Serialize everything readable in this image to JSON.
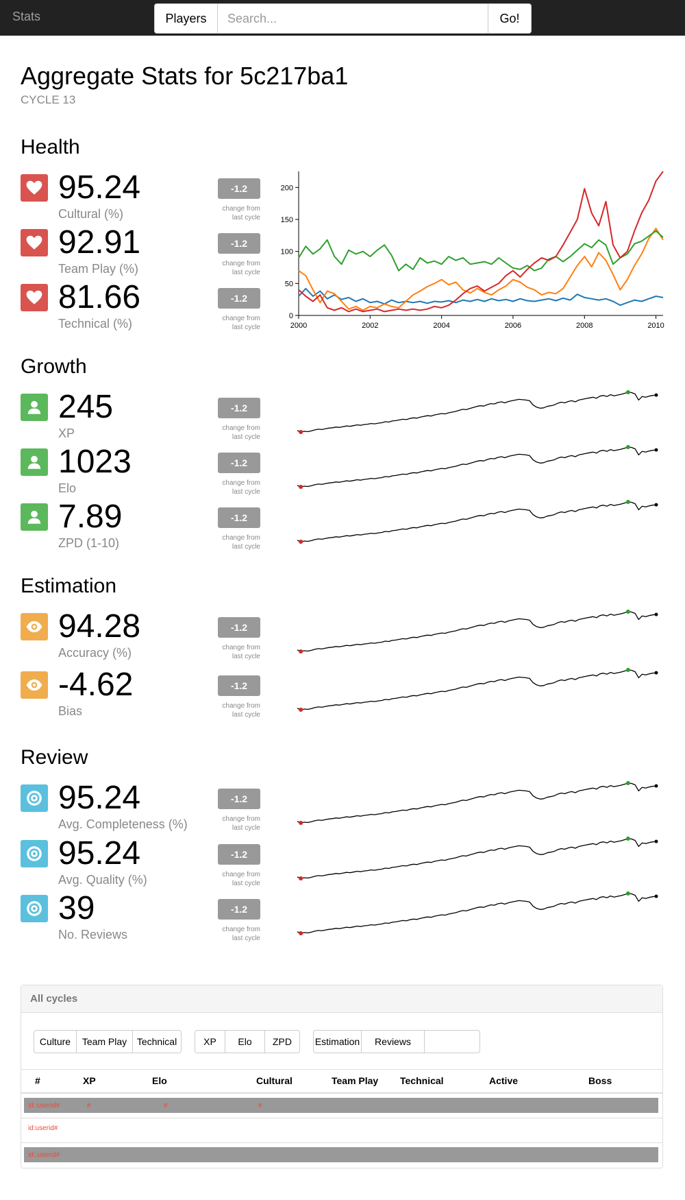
{
  "navbar": {
    "brand": "Stats",
    "players_label": "Players",
    "search_placeholder": "Search...",
    "go_label": "Go!"
  },
  "header": {
    "title": "Aggregate Stats for 5c217ba1",
    "subtitle": "CYCLE 13"
  },
  "change_note_line1": "change from",
  "change_note_line2": "last cycle",
  "sections": {
    "health": {
      "title": "Health",
      "icon": "heart-icon",
      "metrics": [
        {
          "value": "95.24",
          "label": "Cultural (%)",
          "delta": "-1.2"
        },
        {
          "value": "92.91",
          "label": "Team Play (%)",
          "delta": "-1.2"
        },
        {
          "value": "81.66",
          "label": "Technical (%)",
          "delta": "-1.2"
        }
      ]
    },
    "growth": {
      "title": "Growth",
      "icon": "user-icon",
      "metrics": [
        {
          "value": "245",
          "label": "XP",
          "delta": "-1.2"
        },
        {
          "value": "1023",
          "label": "Elo",
          "delta": "-1.2"
        },
        {
          "value": "7.89",
          "label": "ZPD (1-10)",
          "delta": "-1.2"
        }
      ]
    },
    "estimation": {
      "title": "Estimation",
      "icon": "eye-icon",
      "metrics": [
        {
          "value": "94.28",
          "label": "Accuracy (%)",
          "delta": "-1.2"
        },
        {
          "value": "-4.62",
          "label": "Bias",
          "delta": "-1.2"
        }
      ]
    },
    "review": {
      "title": "Review",
      "icon": "target-icon",
      "metrics": [
        {
          "value": "95.24",
          "label": "Avg. Completeness (%)",
          "delta": "-1.2"
        },
        {
          "value": "95.24",
          "label": "Avg. Quality (%)",
          "delta": "-1.2"
        },
        {
          "value": "39",
          "label": "No. Reviews",
          "delta": "-1.2"
        }
      ]
    }
  },
  "colors": {
    "health": "#d9534f",
    "growth": "#5cb85c",
    "estimation": "#f0ad4e",
    "review": "#5bc0de",
    "badge": "#999999"
  },
  "chart_data": {
    "type": "line",
    "xlim": [
      2000,
      2010.2
    ],
    "ylim": [
      0,
      225
    ],
    "x_ticks": [
      "2000",
      "2002",
      "2004",
      "2006",
      "2008",
      "2010"
    ],
    "y_ticks": [
      "0",
      "50",
      "100",
      "150",
      "200"
    ],
    "series": [
      {
        "color": "#1f77b4",
        "points": [
          [
            2000,
            30
          ],
          [
            2000.2,
            42
          ],
          [
            2000.4,
            30
          ],
          [
            2000.6,
            38
          ],
          [
            2000.8,
            26
          ],
          [
            2001,
            32
          ],
          [
            2001.2,
            25
          ],
          [
            2001.4,
            28
          ],
          [
            2001.6,
            22
          ],
          [
            2001.8,
            26
          ],
          [
            2002,
            20
          ],
          [
            2002.2,
            22
          ],
          [
            2002.4,
            18
          ],
          [
            2002.6,
            24
          ],
          [
            2002.8,
            20
          ],
          [
            2003,
            22
          ],
          [
            2003.2,
            20
          ],
          [
            2003.4,
            22
          ],
          [
            2003.6,
            19
          ],
          [
            2003.8,
            22
          ],
          [
            2004,
            21
          ],
          [
            2004.2,
            23
          ],
          [
            2004.4,
            20
          ],
          [
            2004.6,
            24
          ],
          [
            2004.8,
            22
          ],
          [
            2005,
            25
          ],
          [
            2005.2,
            22
          ],
          [
            2005.4,
            26
          ],
          [
            2005.6,
            23
          ],
          [
            2005.8,
            25
          ],
          [
            2006,
            22
          ],
          [
            2006.2,
            26
          ],
          [
            2006.4,
            23
          ],
          [
            2006.6,
            22
          ],
          [
            2006.8,
            24
          ],
          [
            2007,
            26
          ],
          [
            2007.2,
            23
          ],
          [
            2007.4,
            27
          ],
          [
            2007.6,
            24
          ],
          [
            2007.8,
            33
          ],
          [
            2008,
            28
          ],
          [
            2008.2,
            26
          ],
          [
            2008.4,
            24
          ],
          [
            2008.6,
            26
          ],
          [
            2008.8,
            22
          ],
          [
            2009,
            16
          ],
          [
            2009.2,
            20
          ],
          [
            2009.4,
            24
          ],
          [
            2009.6,
            22
          ],
          [
            2009.8,
            26
          ],
          [
            2010,
            30
          ],
          [
            2010.2,
            28
          ]
        ]
      },
      {
        "color": "#ff7f0e",
        "points": [
          [
            2000,
            70
          ],
          [
            2000.2,
            62
          ],
          [
            2000.4,
            40
          ],
          [
            2000.6,
            20
          ],
          [
            2000.8,
            38
          ],
          [
            2001,
            34
          ],
          [
            2001.2,
            22
          ],
          [
            2001.4,
            10
          ],
          [
            2001.6,
            14
          ],
          [
            2001.8,
            8
          ],
          [
            2002,
            14
          ],
          [
            2002.2,
            12
          ],
          [
            2002.4,
            18
          ],
          [
            2002.6,
            14
          ],
          [
            2002.8,
            12
          ],
          [
            2003,
            22
          ],
          [
            2003.2,
            32
          ],
          [
            2003.4,
            38
          ],
          [
            2003.6,
            45
          ],
          [
            2003.8,
            50
          ],
          [
            2004,
            56
          ],
          [
            2004.2,
            48
          ],
          [
            2004.4,
            52
          ],
          [
            2004.6,
            40
          ],
          [
            2004.8,
            35
          ],
          [
            2005,
            42
          ],
          [
            2005.2,
            36
          ],
          [
            2005.4,
            32
          ],
          [
            2005.6,
            40
          ],
          [
            2005.8,
            46
          ],
          [
            2006,
            56
          ],
          [
            2006.2,
            52
          ],
          [
            2006.4,
            44
          ],
          [
            2006.6,
            40
          ],
          [
            2006.8,
            32
          ],
          [
            2007,
            36
          ],
          [
            2007.2,
            34
          ],
          [
            2007.4,
            42
          ],
          [
            2007.6,
            60
          ],
          [
            2007.8,
            78
          ],
          [
            2008,
            92
          ],
          [
            2008.2,
            76
          ],
          [
            2008.4,
            98
          ],
          [
            2008.6,
            86
          ],
          [
            2008.8,
            64
          ],
          [
            2009,
            40
          ],
          [
            2009.2,
            56
          ],
          [
            2009.4,
            78
          ],
          [
            2009.6,
            96
          ],
          [
            2009.8,
            120
          ],
          [
            2010,
            136
          ],
          [
            2010.2,
            118
          ]
        ]
      },
      {
        "color": "#2ca02c",
        "points": [
          [
            2000,
            90
          ],
          [
            2000.2,
            108
          ],
          [
            2000.4,
            96
          ],
          [
            2000.6,
            104
          ],
          [
            2000.8,
            118
          ],
          [
            2001,
            92
          ],
          [
            2001.2,
            80
          ],
          [
            2001.4,
            102
          ],
          [
            2001.6,
            96
          ],
          [
            2001.8,
            100
          ],
          [
            2002,
            92
          ],
          [
            2002.2,
            102
          ],
          [
            2002.4,
            110
          ],
          [
            2002.6,
            94
          ],
          [
            2002.8,
            70
          ],
          [
            2003,
            80
          ],
          [
            2003.2,
            72
          ],
          [
            2003.4,
            90
          ],
          [
            2003.6,
            82
          ],
          [
            2003.8,
            85
          ],
          [
            2004,
            80
          ],
          [
            2004.2,
            92
          ],
          [
            2004.4,
            86
          ],
          [
            2004.6,
            90
          ],
          [
            2004.8,
            80
          ],
          [
            2005,
            82
          ],
          [
            2005.2,
            84
          ],
          [
            2005.4,
            80
          ],
          [
            2005.6,
            90
          ],
          [
            2005.8,
            82
          ],
          [
            2006,
            74
          ],
          [
            2006.2,
            72
          ],
          [
            2006.4,
            78
          ],
          [
            2006.6,
            70
          ],
          [
            2006.8,
            74
          ],
          [
            2007,
            88
          ],
          [
            2007.2,
            92
          ],
          [
            2007.4,
            84
          ],
          [
            2007.6,
            92
          ],
          [
            2007.8,
            102
          ],
          [
            2008,
            112
          ],
          [
            2008.2,
            106
          ],
          [
            2008.4,
            118
          ],
          [
            2008.6,
            110
          ],
          [
            2008.8,
            80
          ],
          [
            2009,
            90
          ],
          [
            2009.2,
            96
          ],
          [
            2009.4,
            112
          ],
          [
            2009.6,
            116
          ],
          [
            2009.8,
            124
          ],
          [
            2010,
            132
          ],
          [
            2010.2,
            122
          ]
        ]
      },
      {
        "color": "#d62728",
        "points": [
          [
            2000,
            40
          ],
          [
            2000.2,
            30
          ],
          [
            2000.4,
            22
          ],
          [
            2000.6,
            32
          ],
          [
            2000.8,
            12
          ],
          [
            2001,
            8
          ],
          [
            2001.2,
            12
          ],
          [
            2001.4,
            6
          ],
          [
            2001.6,
            10
          ],
          [
            2001.8,
            6
          ],
          [
            2002,
            8
          ],
          [
            2002.2,
            10
          ],
          [
            2002.4,
            6
          ],
          [
            2002.6,
            8
          ],
          [
            2002.8,
            10
          ],
          [
            2003,
            8
          ],
          [
            2003.2,
            10
          ],
          [
            2003.4,
            8
          ],
          [
            2003.6,
            10
          ],
          [
            2003.8,
            14
          ],
          [
            2004,
            12
          ],
          [
            2004.2,
            16
          ],
          [
            2004.4,
            24
          ],
          [
            2004.6,
            34
          ],
          [
            2004.8,
            42
          ],
          [
            2005,
            46
          ],
          [
            2005.2,
            38
          ],
          [
            2005.4,
            44
          ],
          [
            2005.6,
            50
          ],
          [
            2005.8,
            62
          ],
          [
            2006,
            70
          ],
          [
            2006.2,
            60
          ],
          [
            2006.4,
            72
          ],
          [
            2006.6,
            82
          ],
          [
            2006.8,
            90
          ],
          [
            2007,
            86
          ],
          [
            2007.2,
            92
          ],
          [
            2007.4,
            110
          ],
          [
            2007.6,
            130
          ],
          [
            2007.8,
            150
          ],
          [
            2008,
            198
          ],
          [
            2008.2,
            160
          ],
          [
            2008.4,
            140
          ],
          [
            2008.6,
            178
          ],
          [
            2008.8,
            110
          ],
          [
            2009,
            90
          ],
          [
            2009.2,
            100
          ],
          [
            2009.4,
            132
          ],
          [
            2009.6,
            160
          ],
          [
            2009.8,
            180
          ],
          [
            2010,
            210
          ],
          [
            2010.2,
            225
          ]
        ]
      }
    ]
  },
  "sparkline": {
    "type": "line",
    "values": [
      22,
      18,
      20,
      19,
      21,
      24,
      26,
      25,
      27,
      29,
      30,
      32,
      31,
      33,
      35,
      34,
      36,
      38,
      37,
      39,
      40,
      42,
      41,
      43,
      44,
      47,
      46,
      49,
      50,
      52,
      54,
      53,
      56,
      58,
      57,
      60,
      62,
      64,
      63,
      66,
      68,
      70,
      69,
      72,
      74,
      76,
      79,
      82,
      81,
      84,
      87,
      90,
      92,
      91,
      95,
      98,
      97,
      101,
      103,
      100,
      104,
      106,
      108,
      110,
      109,
      108,
      106,
      94,
      88,
      85,
      86,
      90,
      92,
      94,
      99,
      102,
      100,
      104,
      106,
      103,
      108,
      110,
      112,
      114,
      116,
      113,
      119,
      121,
      118,
      123,
      120,
      122,
      124,
      127,
      130,
      129,
      125,
      108,
      118,
      116,
      119,
      121,
      122
    ]
  },
  "panel": {
    "title": "All cycles",
    "groups": [
      [
        "Culture",
        "Team Play",
        "Technical"
      ],
      [
        "XP",
        "Elo",
        "ZPD"
      ],
      [
        "Estimation",
        "Reviews",
        ""
      ]
    ],
    "columns": [
      "#",
      "XP",
      "Elo",
      "Cultural",
      "Team Play",
      "Technical",
      "Active",
      "Boss"
    ],
    "rows": [
      {
        "id": "id::userid#",
        "xp": "#",
        "elo": "#",
        "cultural": "#"
      },
      {
        "id": "id:userid#"
      },
      {
        "id": "id::userid#"
      }
    ]
  }
}
